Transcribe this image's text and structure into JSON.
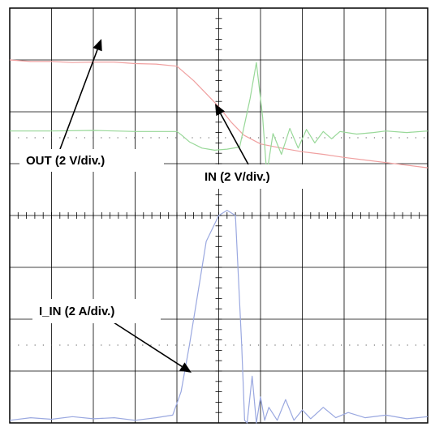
{
  "chart_data": {
    "type": "line",
    "grid": true,
    "divisions": {
      "x": 10,
      "y": 8
    },
    "xlim": [
      0,
      10
    ],
    "ylim": [
      0,
      8
    ],
    "series": [
      {
        "name": "OUT",
        "color": "#f0a0a0",
        "x": [
          0,
          0.5,
          1.0,
          1.5,
          2.0,
          2.5,
          3.0,
          3.5,
          4.0,
          4.4,
          4.7,
          5.0,
          5.3,
          5.6,
          6.0,
          6.5,
          7.0,
          7.5,
          8.0,
          8.5,
          9.0,
          9.5,
          10.0
        ],
        "y": [
          7.0,
          6.97,
          6.97,
          6.95,
          6.96,
          6.96,
          6.93,
          6.92,
          6.88,
          6.6,
          6.35,
          6.1,
          5.8,
          5.55,
          5.38,
          5.3,
          5.23,
          5.18,
          5.12,
          5.07,
          5.02,
          4.97,
          4.92
        ]
      },
      {
        "name": "IN",
        "color": "#98d898",
        "x": [
          0,
          1,
          2,
          3,
          4,
          4.1,
          4.3,
          4.6,
          4.9,
          5.2,
          5.5,
          5.75,
          5.9,
          6.05,
          6.15,
          6.3,
          6.5,
          6.7,
          6.9,
          7.1,
          7.3,
          7.5,
          7.7,
          7.9,
          8.3,
          8.7,
          9.0,
          9.5,
          10.0
        ],
        "y": [
          5.63,
          5.63,
          5.64,
          5.62,
          5.62,
          5.56,
          5.42,
          5.3,
          5.26,
          5.28,
          5.32,
          6.25,
          6.95,
          5.9,
          4.8,
          5.58,
          5.18,
          5.68,
          5.3,
          5.66,
          5.4,
          5.62,
          5.48,
          5.62,
          5.57,
          5.6,
          5.63,
          5.6,
          5.63
        ]
      },
      {
        "name": "I_IN",
        "color": "#9aa8e0",
        "x": [
          0,
          0.5,
          1.0,
          1.5,
          2.0,
          2.5,
          3.0,
          3.5,
          3.9,
          4.1,
          4.3,
          4.5,
          4.7,
          5.0,
          5.2,
          5.4,
          5.55,
          5.62,
          5.68,
          5.8,
          5.9,
          6.0,
          6.1,
          6.2,
          6.4,
          6.6,
          6.8,
          7.0,
          7.2,
          7.5,
          7.8,
          8.1,
          8.5,
          9.0,
          9.5,
          10.0
        ],
        "y": [
          0.05,
          0.1,
          0.07,
          0.12,
          0.08,
          0.1,
          0.05,
          0.1,
          0.15,
          0.6,
          1.5,
          2.5,
          3.5,
          4.0,
          4.1,
          4.0,
          1.5,
          0.05,
          0.0,
          0.9,
          0.0,
          0.5,
          0.05,
          0.3,
          0.05,
          0.45,
          0.05,
          0.25,
          0.08,
          0.3,
          0.1,
          0.2,
          0.1,
          0.15,
          0.08,
          0.12
        ]
      }
    ],
    "annotations": [
      {
        "id": "out",
        "text": "OUT (2 V/div.)",
        "target_series": "OUT"
      },
      {
        "id": "in",
        "text": "IN (2 V/div.)",
        "target_series": "IN"
      },
      {
        "id": "iin",
        "text": "I_IN (2 A/div.)",
        "target_series": "I_IN"
      }
    ]
  }
}
